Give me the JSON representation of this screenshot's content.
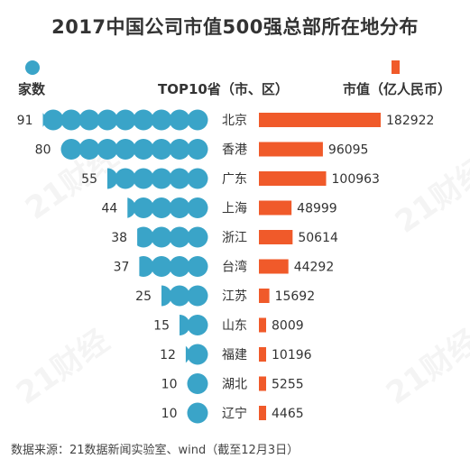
{
  "title": "2017中国公司市值500强总部所在地分布",
  "legend": {
    "count_label": "家数",
    "region_label": "TOP10省（市、区）",
    "value_label": "市值（亿人民币）"
  },
  "watermark": "21财经",
  "footer": "数据来源：21数据新闻实验室、wind（截至12月3日）",
  "colors": {
    "circle": "#3aa4c8",
    "bar": "#f05a2a"
  },
  "chart_data": {
    "type": "bar",
    "categories": [
      "北京",
      "香港",
      "广东",
      "上海",
      "浙江",
      "台湾",
      "江苏",
      "山东",
      "福建",
      "湖北",
      "辽宁"
    ],
    "series": [
      {
        "name": "家数",
        "values": [
          91,
          80,
          55,
          44,
          38,
          37,
          25,
          15,
          12,
          10,
          10
        ]
      },
      {
        "name": "市值（亿人民币）",
        "values": [
          182922,
          96095,
          100963,
          48999,
          50614,
          44292,
          15692,
          8009,
          10196,
          5255,
          4465
        ]
      }
    ]
  }
}
